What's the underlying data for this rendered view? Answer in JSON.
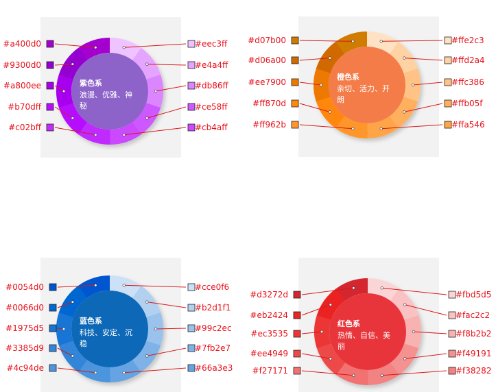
{
  "panels": [
    {
      "id": "purple",
      "title": "紫色系",
      "desc_lines": [
        "浪漫、优雅、神",
        "秘"
      ],
      "center_color": "#8d63c9",
      "left_colors": [
        "#a400d0",
        "#9300d0",
        "#a800ee",
        "#b70dff",
        "#c02bff"
      ],
      "right_colors": [
        "#eec3ff",
        "#e4a4ff",
        "#db86ff",
        "#ce58ff",
        "#cb4aff"
      ],
      "left_labels": [
        "#a400d0",
        "#9300d0",
        "#a800ee",
        "#b70dff",
        "#c02bff"
      ],
      "right_labels": [
        "#eec3ff",
        "#e4a4ff",
        "#db86ff",
        "#ce58ff",
        "#cb4aff"
      ]
    },
    {
      "id": "orange",
      "title": "橙色系",
      "desc_lines": [
        "亲切、活力、开",
        "朗"
      ],
      "center_color": "#f37c49",
      "left_colors": [
        "#d07b00",
        "#d06a00",
        "#ee7900",
        "#ff870d",
        "#ff962b"
      ],
      "right_colors": [
        "#ffe2c3",
        "#ffd2a4",
        "#ffc386",
        "#ffb05f",
        "#ffa546"
      ],
      "left_labels": [
        "#d07b00",
        "#d06a00",
        "#ee7900",
        "#ff870d",
        "#ff962b"
      ],
      "right_labels": [
        "#ffe2c3",
        "#ffd2a4",
        "#ffc386",
        "#ffb05f",
        "#ffa546"
      ]
    },
    {
      "id": "blue",
      "title": "蓝色系",
      "desc_lines": [
        "科技、安定、沉",
        "稳"
      ],
      "center_color": "#0b67b8",
      "left_colors": [
        "#0054d0",
        "#0066d0",
        "#1975d5",
        "#3385d9",
        "#4c94de"
      ],
      "right_colors": [
        "#cce0f6",
        "#b2d1f1",
        "#99c2ec",
        "#7fb2e7",
        "#66a3e3"
      ],
      "left_labels": [
        "#0054d0",
        "#0066d0",
        "#1975d5",
        "#3385d9",
        "#4c94de"
      ],
      "right_labels": [
        "#cce0f6",
        "#b2d1f1",
        "#99c2ec",
        "#7fb2e7",
        "#66a3e3"
      ]
    },
    {
      "id": "red",
      "title": "红色系",
      "desc_lines": [
        "热情、自信、美",
        "丽"
      ],
      "center_color": "#e8363a",
      "left_colors": [
        "#d3272d",
        "#eb2424",
        "#ec3535",
        "#ee4949",
        "#f27171"
      ],
      "right_colors": [
        "#fbd5d5",
        "#fac2c2",
        "#f8b2b2",
        "#f49191",
        "#f38282"
      ],
      "left_labels": [
        "#d3272d",
        "#eb2424",
        "#ec3535",
        "#ee4949",
        "#f27171"
      ],
      "right_labels": [
        "#fbd5d5",
        "#fac2c2",
        "#f8b2b2",
        "#f49191",
        "#f38282"
      ]
    }
  ],
  "styles": {
    "label_color": "#e8101a",
    "leader_color": "#d81818",
    "panel_background": "#f2f2f2",
    "swatch_border": "#222222"
  }
}
